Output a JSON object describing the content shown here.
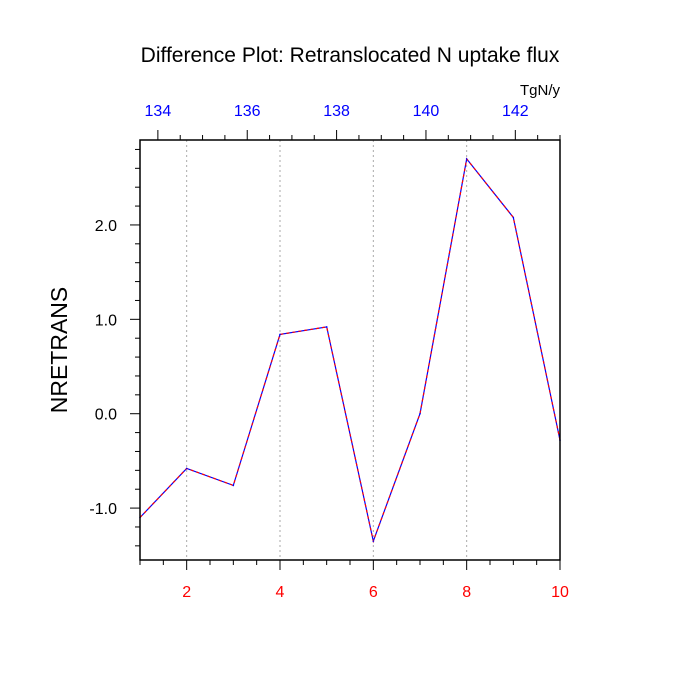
{
  "chart_data": {
    "type": "line",
    "title": "Difference Plot: Retranslocated N uptake flux",
    "ylabel": "NRETRANS",
    "units": "TgN/y",
    "x": [
      1,
      2,
      3,
      4,
      5,
      6,
      7,
      8,
      9,
      10
    ],
    "series": [
      {
        "values": [
          -1.1,
          -0.58,
          -0.76,
          0.84,
          0.92,
          -1.35,
          0.0,
          2.7,
          2.08,
          -0.28
        ],
        "color": "#0000ff",
        "dash_color": "#ff0000"
      }
    ],
    "xlim": [
      1,
      10
    ],
    "ylim": [
      -1.55,
      2.9
    ],
    "x_ticks": [
      "2",
      "4",
      "6",
      "8",
      "10"
    ],
    "y_ticks": [
      "-1.0",
      "0.0",
      "1.0",
      "2.0"
    ],
    "top_axis": {
      "xlim": [
        133.6,
        143
      ],
      "ticks": [
        "134",
        "136",
        "138",
        "140",
        "142"
      ]
    },
    "grid": "vertical-dotted"
  }
}
